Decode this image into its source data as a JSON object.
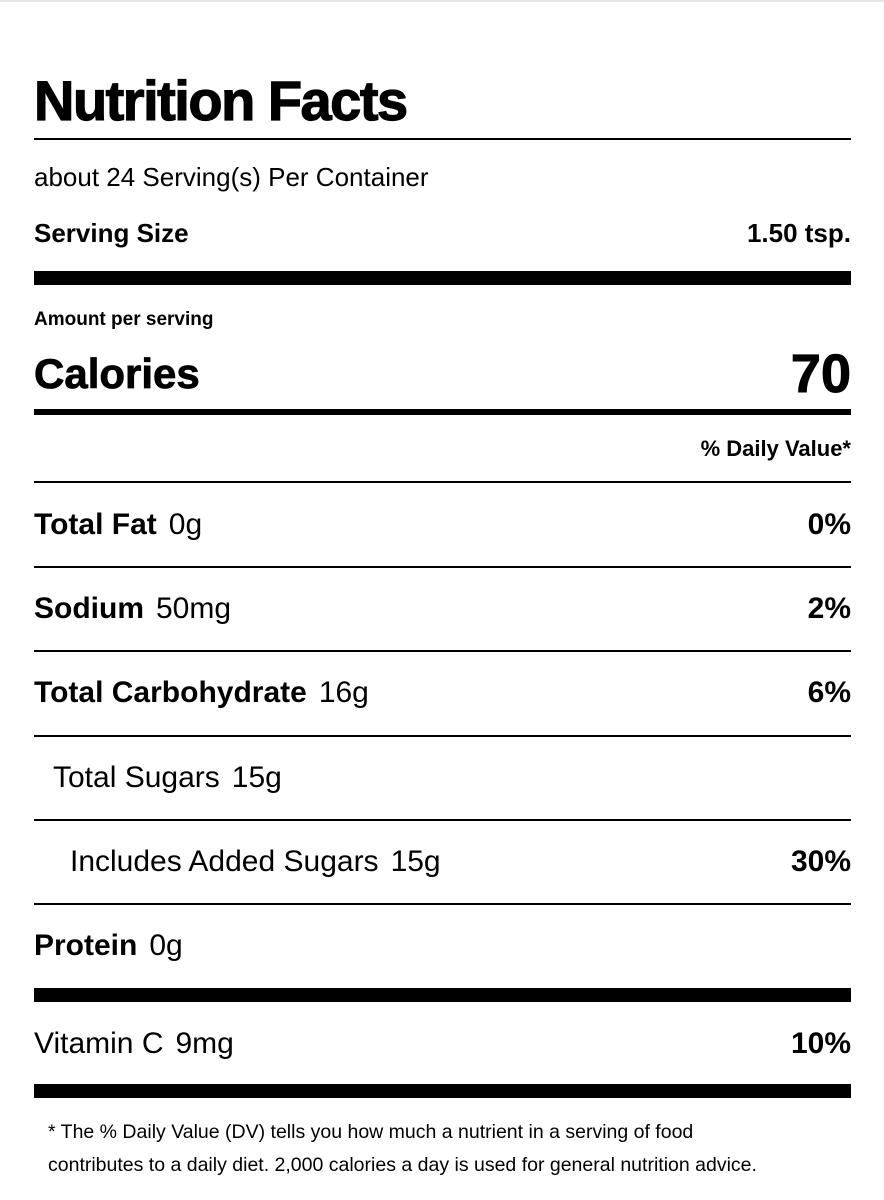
{
  "title": "Nutrition Facts",
  "servings_per_container": "about 24 Serving(s) Per Container",
  "serving_size": {
    "label": "Serving Size",
    "value": "1.50 tsp."
  },
  "amount_per_serving": "Amount per serving",
  "calories": {
    "label": "Calories",
    "value": "70"
  },
  "daily_value_header": "% Daily Value*",
  "nutrients": [
    {
      "name": "Total Fat",
      "amount": "0g",
      "dv": "0%"
    },
    {
      "name": "Sodium",
      "amount": "50mg",
      "dv": "2%"
    },
    {
      "name": "Total Carbohydrate",
      "amount": "16g",
      "dv": "6%"
    },
    {
      "name": "Total Sugars",
      "amount": "15g",
      "dv": ""
    },
    {
      "name": "Includes Added Sugars",
      "amount": "15g",
      "dv": "30%"
    },
    {
      "name": "Protein",
      "amount": "0g",
      "dv": ""
    }
  ],
  "vitamins": [
    {
      "name": "Vitamin C",
      "amount": "9mg",
      "dv": "10%"
    }
  ],
  "footnote": {
    "line1": "* The % Daily Value (DV) tells you how much a nutrient in a serving of food",
    "line2": "contributes to a daily diet. 2,000 calories a day is used for general nutrition advice."
  }
}
